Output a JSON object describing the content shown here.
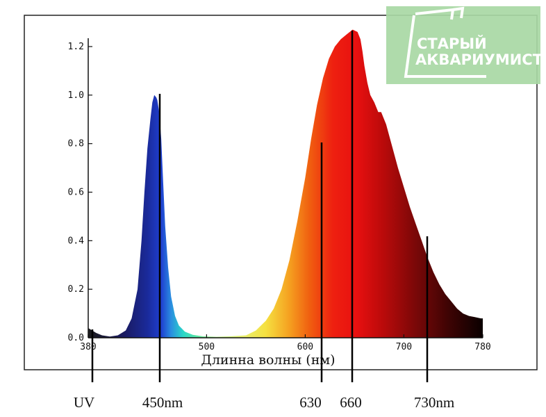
{
  "chart_data": {
    "type": "area",
    "title": "",
    "xlabel": "Длинна волны (нм)",
    "ylabel": "",
    "xlim": [
      380,
      780
    ],
    "ylim": [
      0,
      1.3
    ],
    "x_ticks": [
      380,
      500,
      600,
      700,
      780
    ],
    "y_ticks": [
      "0.0",
      "0.2",
      "0.4",
      "0.6",
      "0.8",
      "1.0",
      "1.2"
    ],
    "grid": false,
    "legend": "none",
    "series": [
      {
        "x": [
          380,
          384,
          388,
          394,
          402,
          410,
          418,
          424,
          430,
          434,
          437,
          440,
          443,
          445,
          447,
          449,
          450,
          452,
          454,
          456,
          458,
          461,
          464,
          468,
          472,
          478,
          486,
          496,
          510,
          525,
          540,
          550,
          560,
          568,
          576,
          584,
          592,
          600,
          606,
          612,
          618,
          624,
          630,
          636,
          642,
          648,
          653,
          656,
          658,
          660,
          663,
          666,
          670,
          674,
          677,
          682,
          688,
          694,
          700,
          706,
          712,
          718,
          724,
          730,
          736,
          742,
          748,
          754,
          760,
          766,
          772,
          778,
          780
        ],
        "y": [
          0.04,
          0.03,
          0.02,
          0.01,
          0.005,
          0.01,
          0.03,
          0.08,
          0.2,
          0.4,
          0.6,
          0.78,
          0.9,
          0.97,
          1.0,
          0.99,
          0.98,
          0.93,
          0.82,
          0.64,
          0.46,
          0.29,
          0.17,
          0.09,
          0.05,
          0.025,
          0.012,
          0.006,
          0.004,
          0.006,
          0.01,
          0.03,
          0.07,
          0.12,
          0.2,
          0.32,
          0.48,
          0.66,
          0.82,
          0.96,
          1.07,
          1.15,
          1.2,
          1.23,
          1.25,
          1.27,
          1.26,
          1.23,
          1.18,
          1.12,
          1.05,
          1.0,
          0.97,
          0.93,
          0.93,
          0.88,
          0.79,
          0.7,
          0.62,
          0.54,
          0.47,
          0.4,
          0.33,
          0.27,
          0.22,
          0.18,
          0.15,
          0.12,
          0.1,
          0.09,
          0.085,
          0.08,
          0.08
        ]
      }
    ],
    "markers": [
      {
        "x": 380,
        "label": "UV"
      },
      {
        "x": 450,
        "label": "450nm"
      },
      {
        "x": 630,
        "label": "630"
      },
      {
        "x": 660,
        "label": "660"
      },
      {
        "x": 730,
        "label": "730nm"
      }
    ]
  },
  "watermark": {
    "line1": "СТАРЫЙ",
    "line2": "АКВАРИУМИСТ",
    "background": "#a8d8a4"
  }
}
